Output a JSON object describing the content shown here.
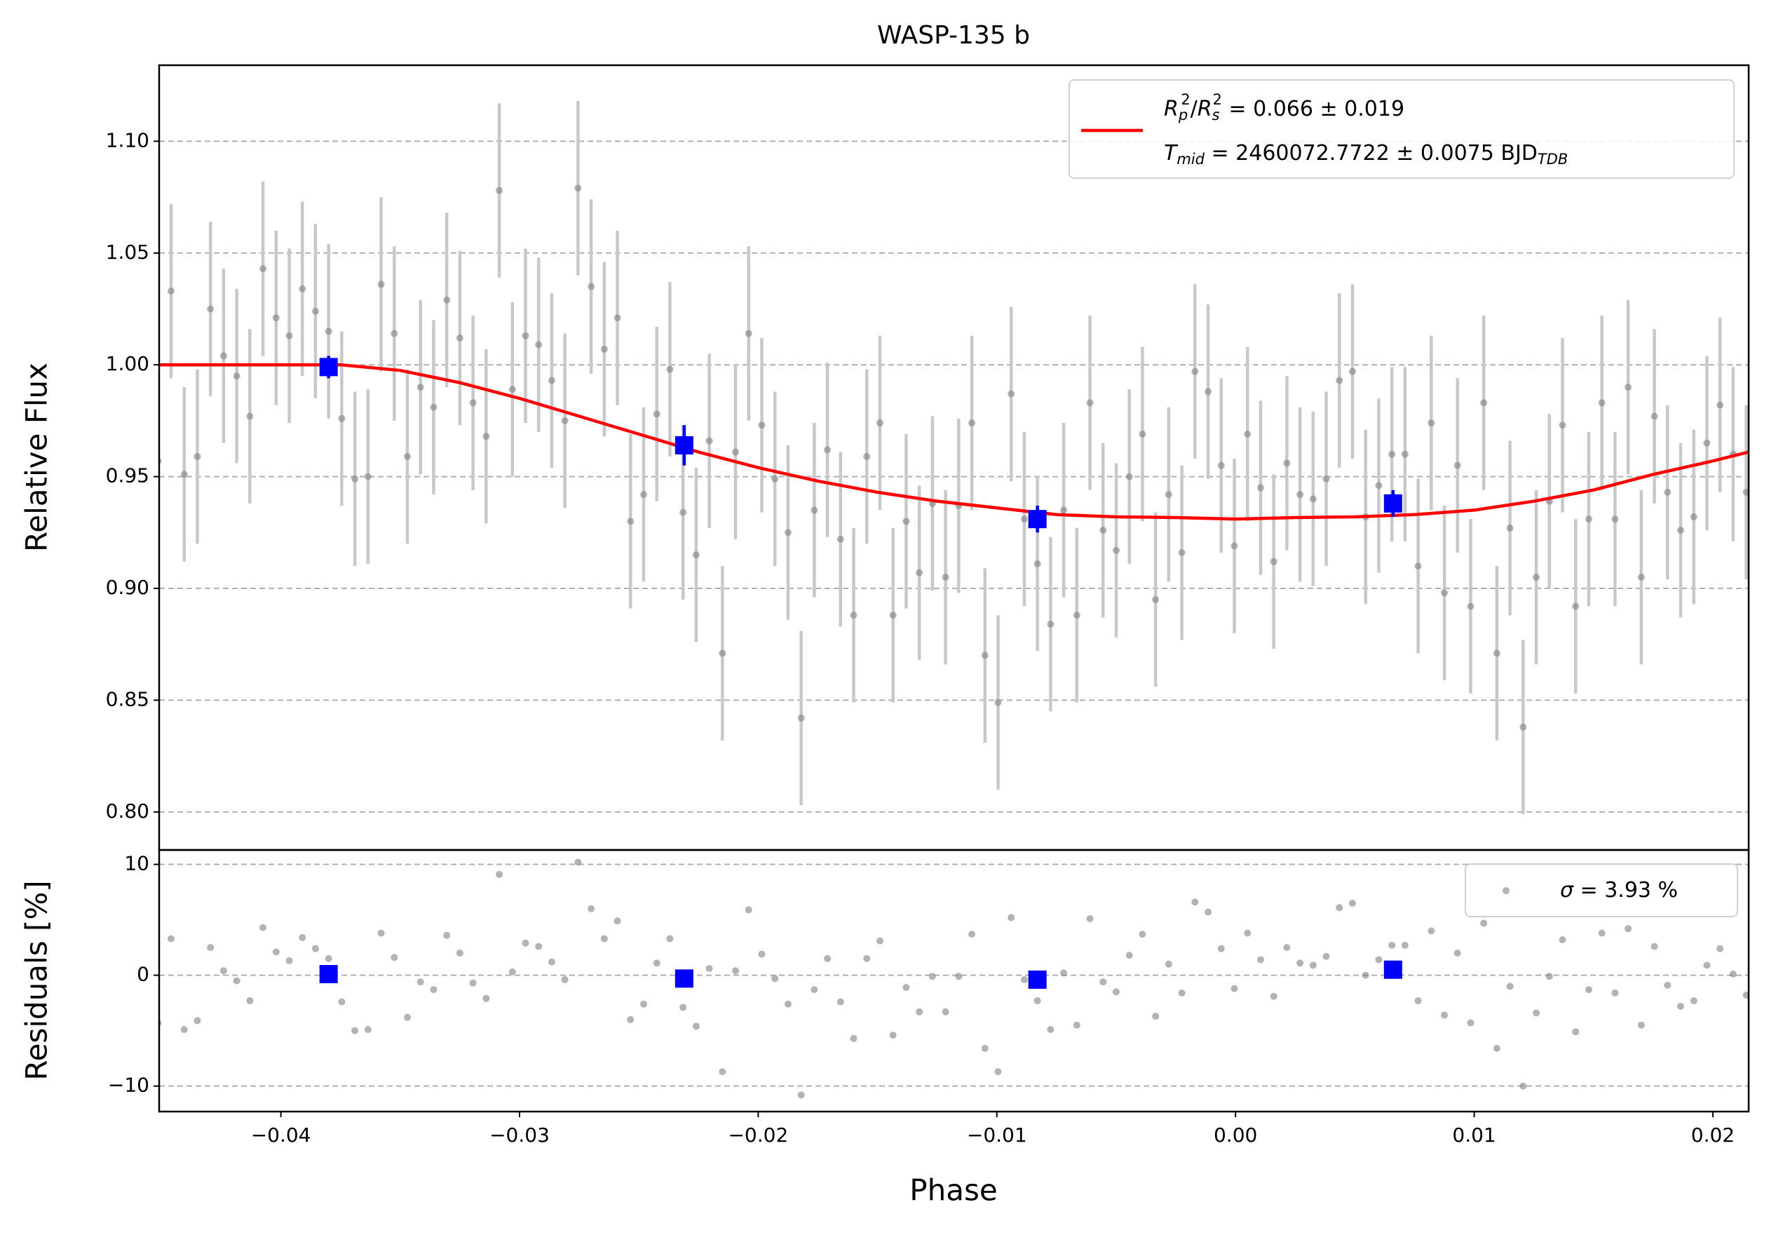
{
  "chart_data": [
    {
      "type": "scatter",
      "title": "WASP-135 b",
      "ylabel": "Relative Flux",
      "xlim": [
        -0.0451,
        0.0215
      ],
      "ylim": [
        0.783,
        1.134
      ],
      "yticks": [
        {
          "value": 0.8,
          "label": "0.80"
        },
        {
          "value": 0.85,
          "label": "0.85"
        },
        {
          "value": 0.9,
          "label": "0.90"
        },
        {
          "value": 0.95,
          "label": "0.95"
        },
        {
          "value": 1.0,
          "label": "1.00"
        },
        {
          "value": 1.05,
          "label": "1.05"
        },
        {
          "value": 1.1,
          "label": "1.10"
        }
      ],
      "grid": true,
      "legend": "upper right",
      "data": {
        "color": "#808080",
        "errcolor": "#c8c8c8",
        "yerr": 0.039,
        "x": [
          -0.04515,
          -0.0446,
          -0.04405,
          -0.0435,
          -0.04295,
          -0.0424,
          -0.04185,
          -0.0413,
          -0.04075,
          -0.0402,
          -0.03965,
          -0.0391,
          -0.03855,
          -0.038,
          -0.03745,
          -0.0369,
          -0.03635,
          -0.0358,
          -0.03525,
          -0.0347,
          -0.03415,
          -0.0336,
          -0.03305,
          -0.0325,
          -0.03195,
          -0.0314,
          -0.03085,
          -0.0303,
          -0.02975,
          -0.0292,
          -0.02865,
          -0.0281,
          -0.02755,
          -0.027,
          -0.02645,
          -0.0259,
          -0.02535,
          -0.0248,
          -0.02425,
          -0.0237,
          -0.02315,
          -0.0226,
          -0.02205,
          -0.0215,
          -0.02095,
          -0.0204,
          -0.01985,
          -0.0193,
          -0.01875,
          -0.0182,
          -0.01765,
          -0.0171,
          -0.01655,
          -0.016,
          -0.01545,
          -0.0149,
          -0.01435,
          -0.0138,
          -0.01325,
          -0.0127,
          -0.01215,
          -0.0116,
          -0.01105,
          -0.0105,
          -0.00995,
          -0.0094,
          -0.00885,
          -0.0083,
          -0.00775,
          -0.0072,
          -0.00665,
          -0.0061,
          -0.00555,
          -0.005,
          -0.00445,
          -0.0039,
          -0.00335,
          -0.0028,
          -0.00225,
          -0.0017,
          -0.00115,
          -0.0006,
          -5e-05,
          0.0005,
          0.00105,
          0.0016,
          0.00215,
          0.0027,
          0.00325,
          0.0038,
          0.00435,
          0.0049,
          0.00545,
          0.006,
          0.00655,
          0.0071,
          0.00765,
          0.0082,
          0.00875,
          0.0093,
          0.00985,
          0.0104,
          0.01095,
          0.0115,
          0.01205,
          0.0126,
          0.01315,
          0.0137,
          0.01425,
          0.0148,
          0.01535,
          0.0159,
          0.01645,
          0.017,
          0.01755,
          0.0181,
          0.01865,
          0.0192,
          0.01975,
          0.0203,
          0.02085,
          0.0214
        ],
        "y": [
          0.957,
          1.033,
          0.951,
          0.959,
          1.025,
          1.004,
          0.995,
          0.977,
          1.043,
          1.021,
          1.013,
          1.034,
          1.024,
          1.015,
          0.976,
          0.949,
          0.95,
          1.036,
          1.014,
          0.959,
          0.99,
          0.981,
          1.029,
          1.012,
          0.983,
          0.968,
          1.078,
          0.989,
          1.013,
          1.009,
          0.993,
          0.975,
          1.079,
          1.035,
          1.007,
          1.021,
          0.93,
          0.942,
          0.978,
          0.998,
          0.934,
          0.915,
          0.966,
          0.871,
          0.961,
          1.014,
          0.973,
          0.949,
          0.925,
          0.842,
          0.935,
          0.962,
          0.922,
          0.888,
          0.959,
          0.974,
          0.888,
          0.93,
          0.907,
          0.938,
          0.905,
          0.937,
          0.974,
          0.87,
          0.849,
          0.987,
          0.931,
          0.911,
          0.884,
          0.935,
          0.888,
          0.983,
          0.926,
          0.917,
          0.95,
          0.969,
          0.895,
          0.942,
          0.916,
          0.997,
          0.988,
          0.955,
          0.919,
          0.969,
          0.945,
          0.912,
          0.956,
          0.942,
          0.94,
          0.949,
          0.993,
          0.997,
          0.932,
          0.946,
          0.96,
          0.96,
          0.91,
          0.974,
          0.898,
          0.955,
          0.892,
          0.983,
          0.871,
          0.927,
          0.838,
          0.905,
          0.939,
          0.973,
          0.892,
          0.931,
          0.983,
          0.931,
          0.99,
          0.905,
          0.977,
          0.943,
          0.926,
          0.932,
          0.965,
          0.982,
          0.96,
          0.943
        ]
      },
      "binned": {
        "color": "#0000ff",
        "x": [
          -0.038,
          -0.0231,
          -0.0083,
          0.0066
        ],
        "y": [
          0.999,
          0.964,
          0.931,
          0.938
        ],
        "yerr": [
          0.005,
          0.009,
          0.006,
          0.006
        ]
      },
      "model": {
        "color": "#ff0000",
        "x": [
          -0.0451,
          -0.0375,
          -0.035,
          -0.0325,
          -0.03,
          -0.0275,
          -0.025,
          -0.0225,
          -0.02,
          -0.0175,
          -0.015,
          -0.0125,
          -0.01,
          -0.0075,
          -0.005,
          -0.0025,
          0,
          0.0025,
          0.005,
          0.0075,
          0.01,
          0.0125,
          0.015,
          0.0175,
          0.02,
          0.0215
        ],
        "y": [
          1.0,
          1.0,
          0.9975,
          0.992,
          0.985,
          0.977,
          0.969,
          0.961,
          0.954,
          0.948,
          0.943,
          0.939,
          0.936,
          0.933,
          0.932,
          0.9317,
          0.931,
          0.9317,
          0.932,
          0.933,
          0.935,
          0.939,
          0.944,
          0.951,
          0.957,
          0.961
        ],
        "legend": [
          [
            {
              "text": "R",
              "italic": true
            },
            {
              "text": "p",
              "italic": true,
              "sub": true
            },
            {
              "text": "2",
              "sup": true
            },
            {
              "text": "/"
            },
            {
              "text": "R",
              "italic": true
            },
            {
              "text": "s",
              "italic": true,
              "sub": true
            },
            {
              "text": "2",
              "sup": true
            },
            {
              "text": " = 0.066 ± 0.019"
            }
          ],
          [
            {
              "text": "T",
              "italic": true
            },
            {
              "text": "mid",
              "italic": true,
              "sub": true
            },
            {
              "text": " = 2460072.7722 ± 0.0075 BJD"
            },
            {
              "text": "TDB",
              "italic": true,
              "sub": true
            }
          ]
        ]
      }
    },
    {
      "type": "scatter",
      "ylabel": "Residuals [%]",
      "xlabel": "Phase",
      "xticks": [
        {
          "value": -0.04,
          "label": "−0.04"
        },
        {
          "value": -0.03,
          "label": "−0.03"
        },
        {
          "value": -0.02,
          "label": "−0.02"
        },
        {
          "value": -0.01,
          "label": "−0.01"
        },
        {
          "value": 0,
          "label": "0.00"
        },
        0.01,
        0.02
      ],
      "ylim": [
        -12.3,
        11.3
      ],
      "yticks": [
        {
          "value": -10,
          "label": "−10"
        },
        0,
        10
      ],
      "grid": true,
      "legend": "upper right",
      "data": {
        "color": "#808080",
        "y": [
          -4.3,
          3.3,
          -4.9,
          -4.1,
          2.5,
          0.4,
          -0.5,
          -2.3,
          4.3,
          2.1,
          1.3,
          3.4,
          2.4,
          1.5,
          -2.4,
          -5.0,
          -4.9,
          3.8,
          1.6,
          -3.8,
          -0.6,
          -1.3,
          3.6,
          2.0,
          -0.7,
          -2.1,
          9.1,
          0.3,
          2.9,
          2.6,
          1.2,
          -0.4,
          10.2,
          6.0,
          3.3,
          4.9,
          -4.0,
          -2.6,
          1.1,
          3.3,
          -2.9,
          -4.6,
          0.6,
          -8.7,
          0.4,
          5.9,
          1.9,
          -0.3,
          -2.6,
          -10.8,
          -1.3,
          1.5,
          -2.4,
          -5.7,
          1.5,
          3.1,
          -5.4,
          -1.1,
          -3.3,
          -0.1,
          -3.3,
          -0.1,
          3.7,
          -6.6,
          -8.7,
          5.2,
          -0.4,
          -2.3,
          -4.9,
          0.2,
          -4.5,
          5.1,
          -0.6,
          -1.5,
          1.8,
          3.7,
          -3.7,
          1.0,
          -1.6,
          6.6,
          5.7,
          2.4,
          -1.2,
          3.8,
          1.4,
          -1.9,
          2.5,
          1.1,
          0.9,
          1.7,
          6.1,
          6.5,
          0,
          1.4,
          2.7,
          2.7,
          -2.3,
          4.0,
          -3.6,
          2.0,
          -4.3,
          4.7,
          -6.6,
          -1.0,
          -10.0,
          -3.4,
          -0.1,
          3.2,
          -5.1,
          -1.3,
          3.8,
          -1.6,
          4.2,
          -4.5,
          2.6,
          -0.9,
          -2.8,
          -2.3,
          0.9,
          2.4,
          0.1,
          -1.8
        ],
        "legend": [
          [
            {
              "text": "σ",
              "italic": true
            },
            {
              "text": " = 3.93 %"
            }
          ]
        ]
      },
      "binned": {
        "color": "#0000ff",
        "y": [
          0.1,
          -0.3,
          -0.4,
          0.5
        ]
      }
    }
  ]
}
